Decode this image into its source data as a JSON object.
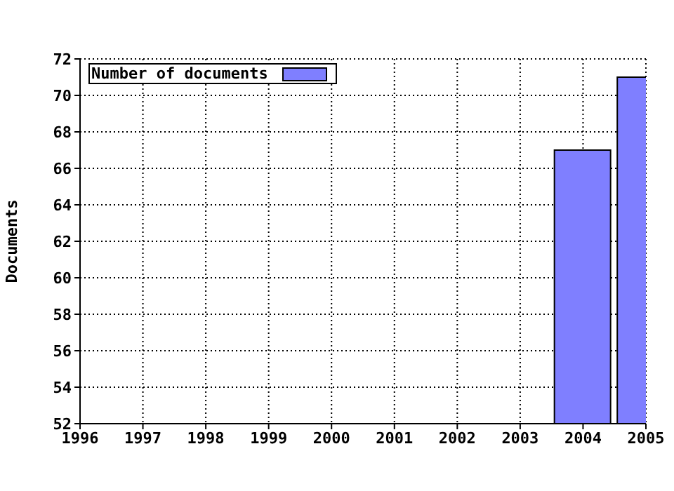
{
  "chart_data": {
    "type": "bar",
    "ylabel": "Documents",
    "x": [
      2004,
      2005
    ],
    "series": [
      {
        "name": "Number of documents",
        "color": "#7f7fff",
        "values": [
          67,
          71
        ]
      }
    ],
    "xlim": [
      1996,
      2005
    ],
    "xticks": [
      1996,
      1997,
      1998,
      1999,
      2000,
      2001,
      2002,
      2003,
      2004,
      2005
    ],
    "ylim": [
      52,
      72
    ],
    "yticks": [
      52,
      54,
      56,
      58,
      60,
      62,
      64,
      66,
      68,
      70,
      72
    ],
    "grid": true,
    "legend": "top left"
  }
}
